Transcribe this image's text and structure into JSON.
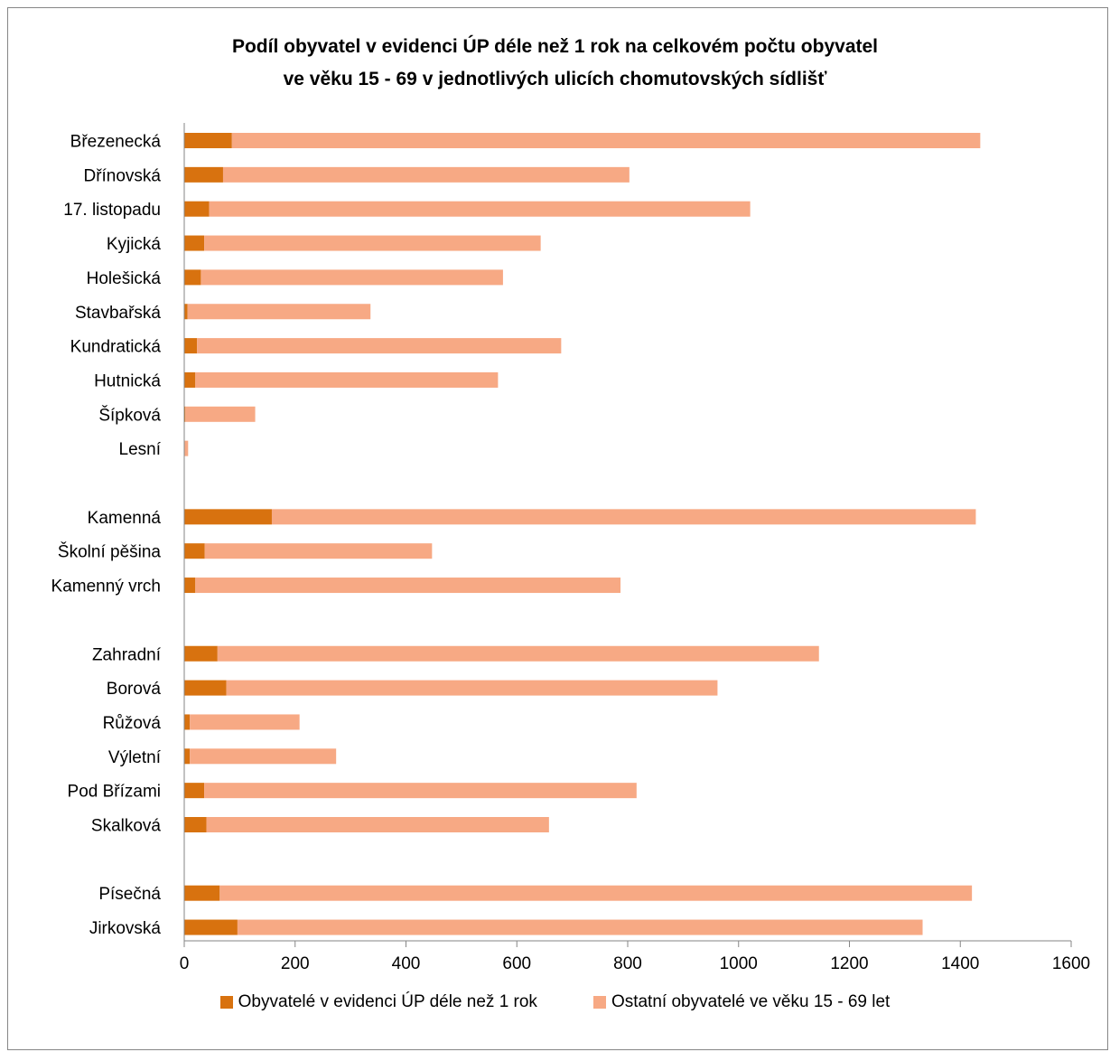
{
  "chart_data": {
    "type": "bar",
    "orientation": "horizontal",
    "stacked": true,
    "title_lines": [
      "Podíl obyvatel v evidenci ÚP déle než 1 rok na celkovém počtu obyvatel",
      "ve věku 15 - 69 v jednotlivých ulicích chomutovských sídlišť"
    ],
    "xlabel": "",
    "ylabel": "",
    "xlim": [
      0,
      1600
    ],
    "xticks": [
      "0",
      "200",
      "400",
      "600",
      "800",
      "1000",
      "1200",
      "1400",
      "1600"
    ],
    "grid": false,
    "legend_position": "bottom",
    "categories": [
      "Březenecká",
      "Dřínovská",
      "17. listopadu",
      "Kyjická",
      "Holešická",
      "Stavbařská",
      "Kundratická",
      "Hutnická",
      "Šípková",
      "Lesní",
      "",
      "Kamenná",
      "Školní pěšina",
      "Kamenný vrch",
      "",
      "Zahradní",
      "Borová",
      "Růžová",
      "Výletní",
      "Pod Břízami",
      "Skalková",
      "",
      "Písečná",
      "Jirkovská"
    ],
    "series": [
      {
        "name": "Obyvatelé v evidenci ÚP déle než 1 rok",
        "color": "#d8720f",
        "values": [
          86,
          70,
          45,
          36,
          30,
          6,
          23,
          20,
          2,
          0,
          null,
          158,
          37,
          20,
          null,
          60,
          76,
          10,
          10,
          36,
          40,
          null,
          64,
          96
        ]
      },
      {
        "name": "Ostatní obyvatelé ve věku 15 - 69 let",
        "color": "#f7a984",
        "values": [
          1350,
          733,
          976,
          607,
          545,
          330,
          657,
          546,
          126,
          7,
          null,
          1270,
          410,
          767,
          null,
          1085,
          886,
          198,
          264,
          780,
          618,
          null,
          1357,
          1236
        ]
      }
    ]
  }
}
